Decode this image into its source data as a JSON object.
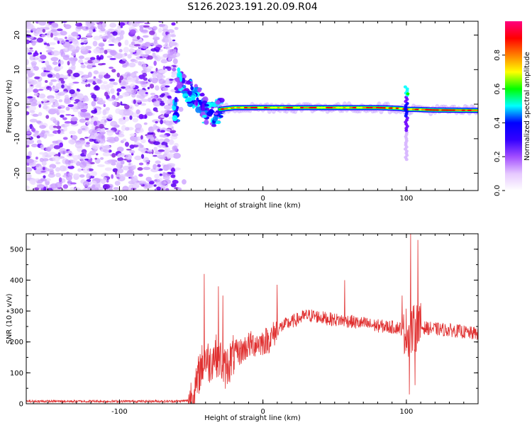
{
  "title": "S126.2023.191.20.09.R04",
  "chart_data": [
    {
      "type": "heatmap",
      "title": "",
      "xlabel": "Height of straight line (km)",
      "ylabel": "Frequency (Hz)",
      "xlim": [
        -165,
        150
      ],
      "ylim": [
        -25,
        24
      ],
      "xticks": [
        -100,
        0,
        100
      ],
      "yticks": [
        -20,
        -10,
        0,
        10,
        20
      ],
      "noise_region_x": [
        -165,
        -60
      ],
      "signal_track": [
        {
          "x": -60,
          "y": 7
        },
        {
          "x": -55,
          "y": 5
        },
        {
          "x": -50,
          "y": 3
        },
        {
          "x": -45,
          "y": 1.5
        },
        {
          "x": -40,
          "y": -2
        },
        {
          "x": -35,
          "y": -3
        },
        {
          "x": -30,
          "y": -1.5
        },
        {
          "x": -20,
          "y": -1
        },
        {
          "x": -10,
          "y": -1
        },
        {
          "x": 0,
          "y": -1
        },
        {
          "x": 20,
          "y": -1
        },
        {
          "x": 50,
          "y": -1
        },
        {
          "x": 80,
          "y": -1
        },
        {
          "x": 95,
          "y": -1.2
        },
        {
          "x": 100,
          "y": -1.5
        },
        {
          "x": 105,
          "y": -1.5
        },
        {
          "x": 120,
          "y": -1.7
        },
        {
          "x": 150,
          "y": -1.8
        }
      ],
      "spur": {
        "x": 100,
        "y_range": [
          -16,
          5
        ]
      },
      "colorbar": {
        "label": "Normalized spectral amplitude",
        "range": [
          0,
          1
        ],
        "ticks": [
          "0.0",
          "0.2",
          "0.4",
          "0.6",
          "0.8"
        ],
        "colors": [
          "#ffffff",
          "#e6c8ff",
          "#a24dff",
          "#3300ff",
          "#0000ff",
          "#00ffff",
          "#00ff00",
          "#ffff00",
          "#ff7f00",
          "#ff0000",
          "#ff0080"
        ]
      }
    },
    {
      "type": "line",
      "title": "",
      "xlabel": "Height of straight line (km)",
      "ylabel": "SNR (10 * v/v)",
      "xlim": [
        -165,
        150
      ],
      "ylim": [
        0,
        550
      ],
      "xticks": [
        -100,
        0,
        100
      ],
      "yticks": [
        0,
        100,
        200,
        300,
        400,
        500
      ],
      "color": "#e03030",
      "series": [
        {
          "x": [
            -165,
            -150,
            -125,
            -100,
            -75,
            -60,
            -52,
            -47,
            -44,
            -40,
            -37,
            -34,
            -30,
            -27,
            -24,
            -20,
            -15,
            -10,
            -5,
            0,
            5,
            10,
            15,
            20,
            25,
            30,
            35,
            40,
            45,
            50,
            55,
            60,
            65,
            70,
            75,
            80,
            85,
            90,
            95,
            98,
            100,
            102,
            103,
            104,
            106,
            108,
            110,
            115,
            120,
            125,
            130,
            135,
            140,
            145,
            150
          ],
          "y": [
            8,
            8,
            8,
            8,
            8,
            8,
            10,
            40,
            110,
            150,
            130,
            160,
            150,
            110,
            130,
            160,
            170,
            190,
            195,
            200,
            210,
            240,
            255,
            265,
            275,
            285,
            285,
            280,
            275,
            272,
            270,
            268,
            262,
            260,
            255,
            252,
            250,
            248,
            246,
            240,
            235,
            230,
            220,
            235,
            245,
            250,
            248,
            244,
            242,
            240,
            238,
            236,
            232,
            228,
            228
          ]
        }
      ],
      "spikes": [
        {
          "x": -41,
          "y": 420
        },
        {
          "x": -31,
          "y": 380
        },
        {
          "x": -28,
          "y": 350
        },
        {
          "x": 10,
          "y": 385
        },
        {
          "x": 57,
          "y": 400
        },
        {
          "x": 97,
          "y": 350
        },
        {
          "x": 103,
          "y": 550
        },
        {
          "x": 108,
          "y": 530
        },
        {
          "x": 102,
          "y": 30
        },
        {
          "x": 106,
          "y": 60
        }
      ]
    }
  ]
}
